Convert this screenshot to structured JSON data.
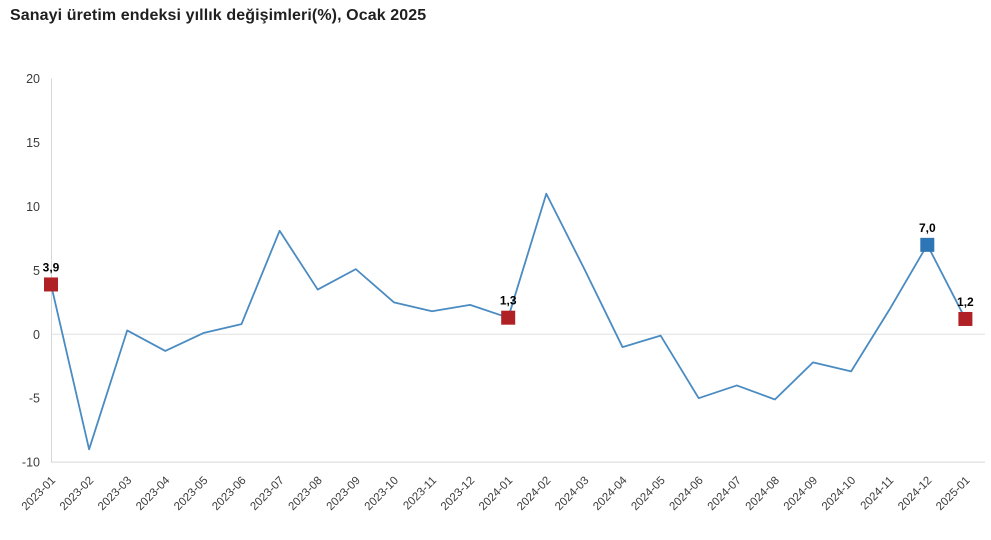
{
  "title": "Sanayi üretim endeksi yıllık değişimleri(%), Ocak 2025",
  "chart_data": {
    "type": "line",
    "title": "Sanayi üretim endeksi yıllık değişimleri(%), Ocak 2025",
    "xlabel": "",
    "ylabel": "",
    "ylim": [
      -10,
      20
    ],
    "yticks": [
      20,
      15,
      10,
      5,
      0,
      -5,
      -10
    ],
    "grid": "horizontal line at 0 and baseline at -10 only",
    "legend": "none",
    "categories": [
      "2023-01",
      "2023-02",
      "2023-03",
      "2023-04",
      "2023-05",
      "2023-06",
      "2023-07",
      "2023-08",
      "2023-09",
      "2023-10",
      "2023-11",
      "2023-12",
      "2024-01",
      "2024-02",
      "2024-03",
      "2024-04",
      "2024-05",
      "2024-06",
      "2024-07",
      "2024-08",
      "2024-09",
      "2024-10",
      "2024-11",
      "2024-12",
      "2025-01"
    ],
    "values": [
      3.9,
      -9.0,
      0.3,
      -1.3,
      0.1,
      0.8,
      8.1,
      3.5,
      5.1,
      2.5,
      1.8,
      2.3,
      1.3,
      11.0,
      5.1,
      -1.0,
      -0.1,
      -5.0,
      -4.0,
      -5.1,
      -2.2,
      -2.9,
      1.9,
      7.0,
      1.2
    ],
    "line_color": "#4a8bc2",
    "axis_line_color": "#d6d6d6",
    "zero_line_color": "#e2e2e2",
    "tick_label_color": "#3c3c3c",
    "data_label_color": "#000000",
    "marked_points": [
      {
        "index": 0,
        "category": "2023-01",
        "label": "3,9",
        "color": "#b02125"
      },
      {
        "index": 12,
        "category": "2024-01",
        "label": "1,3",
        "color": "#b02125"
      },
      {
        "index": 23,
        "category": "2024-12",
        "label": "7,0",
        "color": "#2e75b6"
      },
      {
        "index": 24,
        "category": "2025-01",
        "label": "1,2",
        "color": "#b02125"
      }
    ]
  }
}
